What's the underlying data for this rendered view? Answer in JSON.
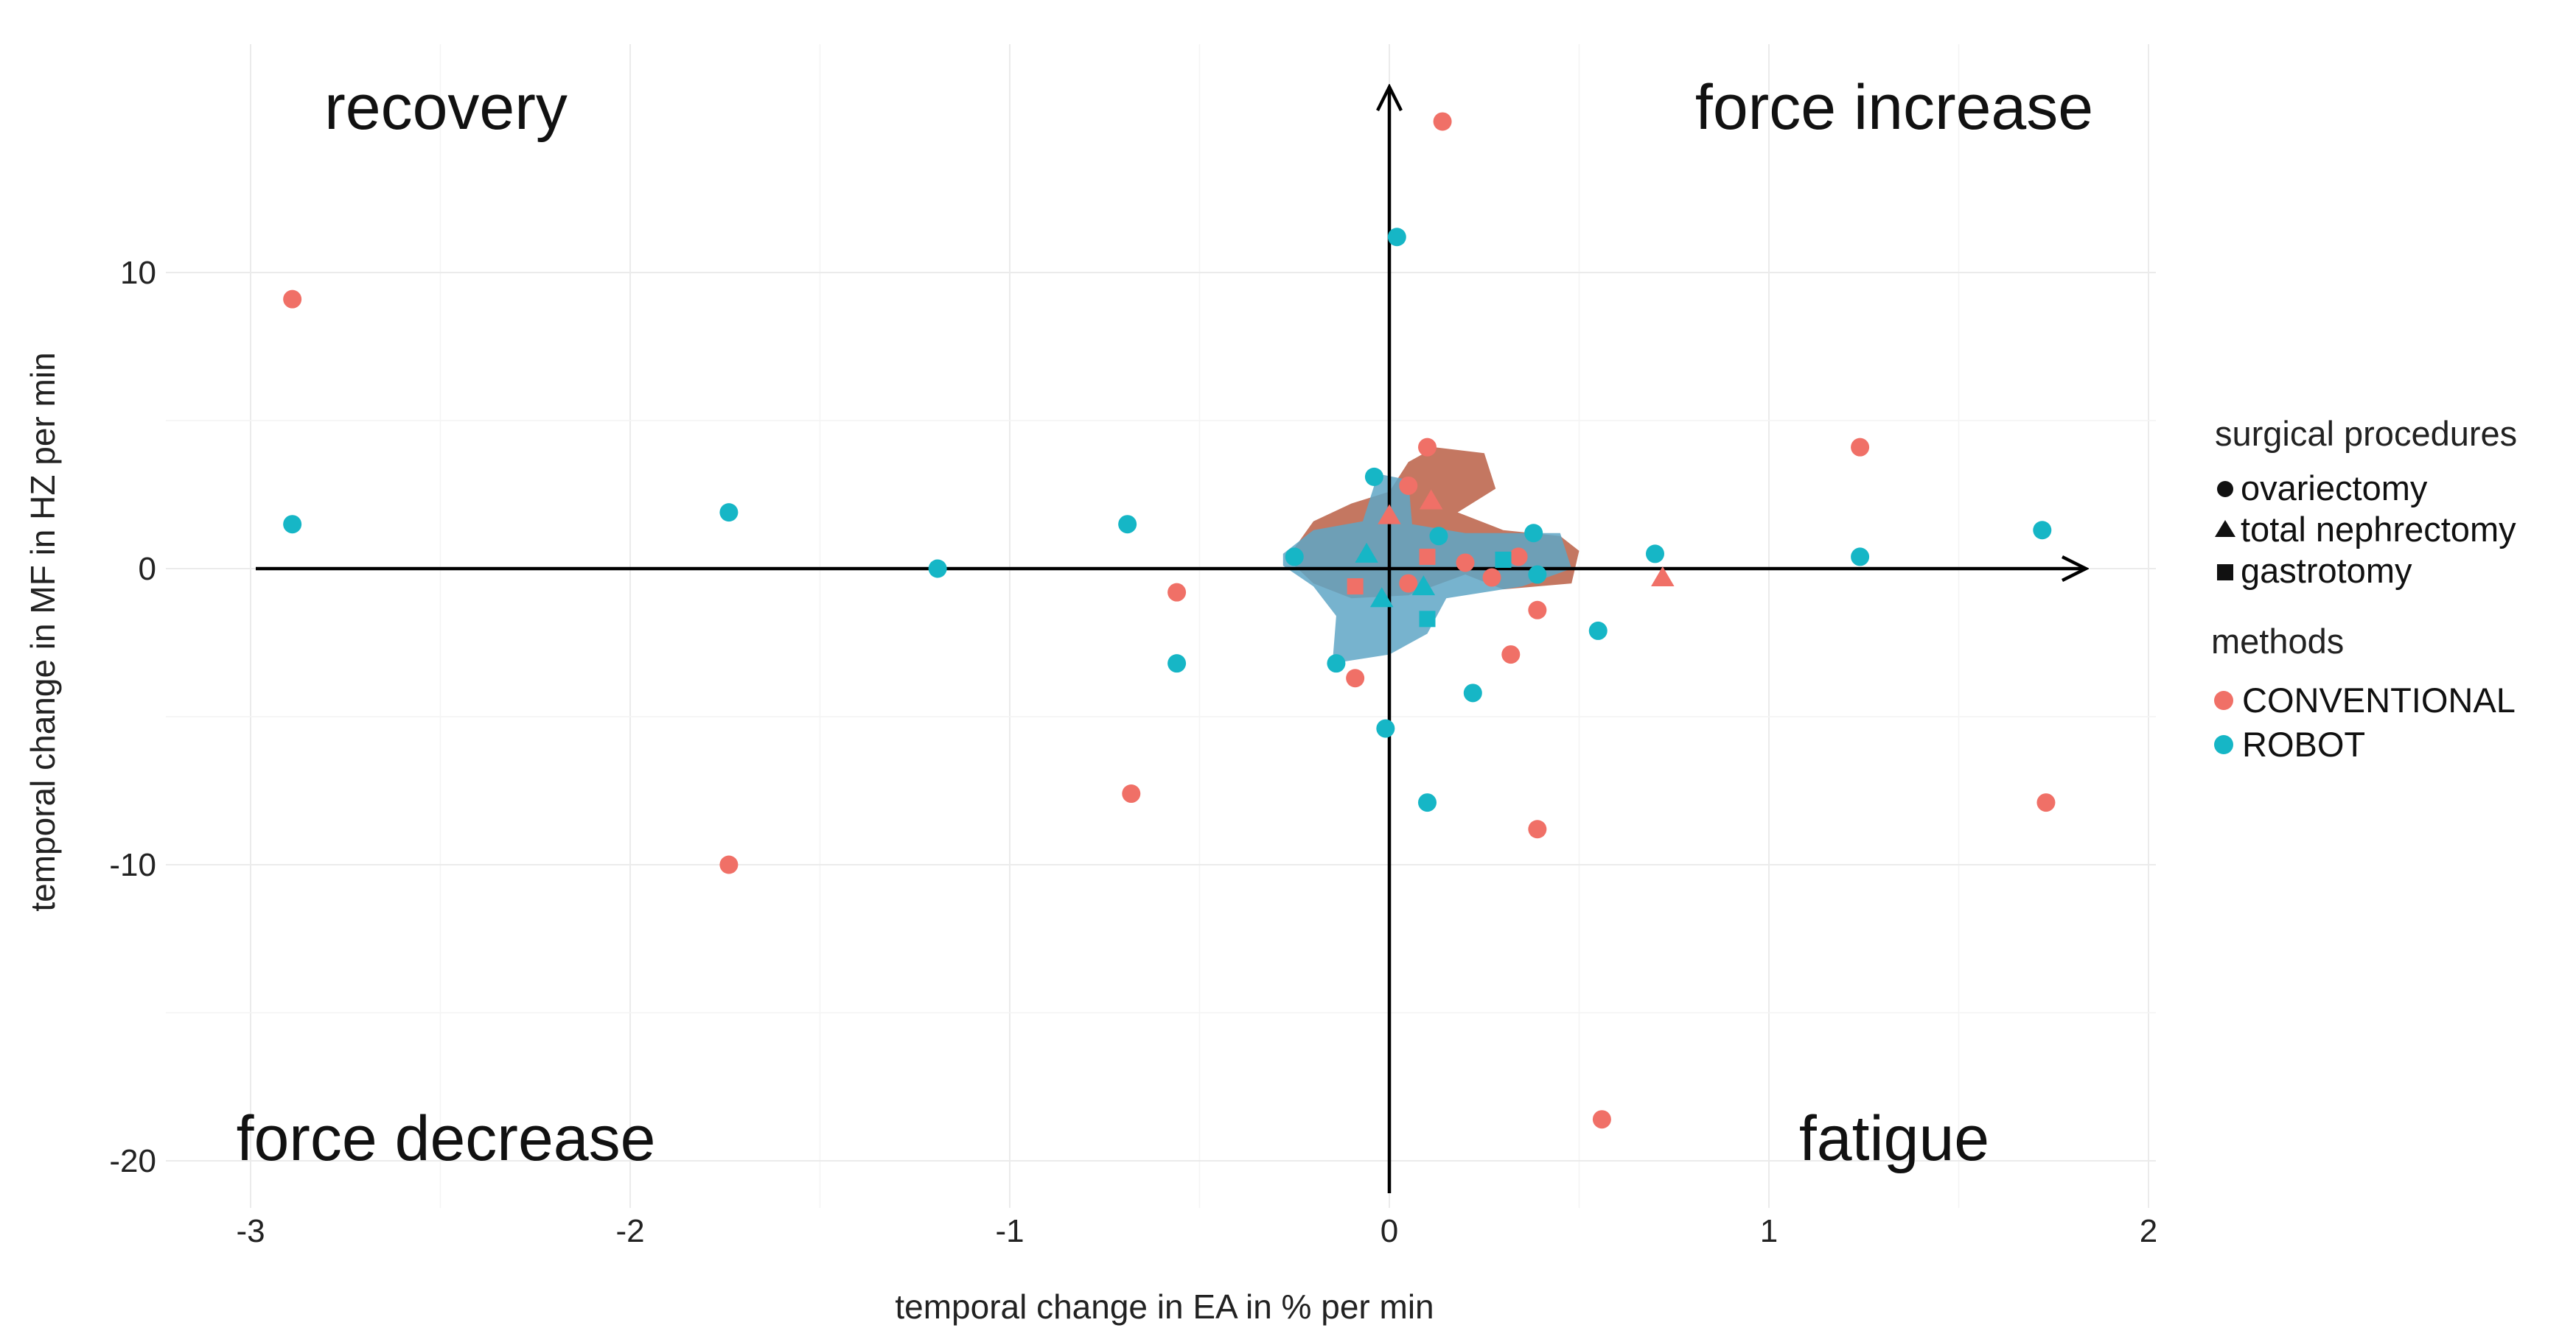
{
  "chart_data": {
    "type": "scatter",
    "title": "",
    "xlabel": "temporal change in EA in % per min",
    "ylabel": "temporal change in MF in HZ per min",
    "xlim": [
      -3.2,
      2.1
    ],
    "ylim": [
      -21,
      16.5
    ],
    "x_ticks": [
      {
        "value": -3,
        "label": "-3"
      },
      {
        "value": -2,
        "label": "-2"
      },
      {
        "value": -1,
        "label": "-1"
      },
      {
        "value": 0,
        "label": "0"
      },
      {
        "value": 1,
        "label": "1"
      },
      {
        "value": 2,
        "label": "2"
      }
    ],
    "y_ticks": [
      {
        "value": 10,
        "label": "10"
      },
      {
        "value": 0,
        "label": "0"
      },
      {
        "value": -10,
        "label": "-10"
      },
      {
        "value": -20,
        "label": "-20"
      }
    ],
    "grid": true,
    "quadrant_labels": {
      "top_left": "recovery",
      "top_right": "force increase",
      "bottom_left": "force decrease",
      "bottom_right": "fatigue"
    },
    "legend": {
      "position": "right",
      "shape_title": "surgical procedures",
      "shapes": [
        {
          "shape": "circle",
          "label": "ovariectomy"
        },
        {
          "shape": "triangle",
          "label": "total nephrectomy"
        },
        {
          "shape": "square",
          "label": "gastrotomy"
        }
      ],
      "color_title": "methods",
      "colors": [
        {
          "method": "CONVENTIONAL",
          "label": "CONVENTIONAL",
          "color": "#F07067"
        },
        {
          "method": "ROBOT",
          "label": "ROBOT",
          "color": "#16B6C6"
        }
      ]
    },
    "density_regions": [
      {
        "method": "CONVENTIONAL",
        "color": "#B5553A",
        "polygon": [
          [
            -0.25,
            0.7
          ],
          [
            -0.2,
            1.6
          ],
          [
            -0.1,
            2.2
          ],
          [
            0.0,
            2.6
          ],
          [
            0.05,
            3.6
          ],
          [
            0.12,
            4.1
          ],
          [
            0.25,
            3.9
          ],
          [
            0.28,
            2.7
          ],
          [
            0.18,
            1.9
          ],
          [
            0.3,
            1.3
          ],
          [
            0.45,
            1.1
          ],
          [
            0.5,
            0.6
          ],
          [
            0.48,
            -0.5
          ],
          [
            0.3,
            -0.7
          ],
          [
            0.2,
            -0.2
          ],
          [
            0.05,
            -0.9
          ],
          [
            -0.1,
            -1.0
          ],
          [
            -0.2,
            -0.5
          ],
          [
            -0.25,
            0.1
          ]
        ]
      },
      {
        "method": "ROBOT",
        "color": "#5FA6C6",
        "polygon": [
          [
            -0.28,
            0.5
          ],
          [
            -0.2,
            1.3
          ],
          [
            -0.07,
            1.6
          ],
          [
            -0.03,
            3.2
          ],
          [
            0.05,
            3.0
          ],
          [
            0.06,
            1.5
          ],
          [
            0.2,
            1.2
          ],
          [
            0.45,
            1.2
          ],
          [
            0.48,
            0.0
          ],
          [
            0.35,
            -0.6
          ],
          [
            0.15,
            -1.0
          ],
          [
            0.1,
            -2.2
          ],
          [
            0.0,
            -2.9
          ],
          [
            -0.15,
            -3.2
          ],
          [
            -0.14,
            -1.6
          ],
          [
            -0.2,
            -0.6
          ],
          [
            -0.28,
            0.1
          ]
        ]
      }
    ],
    "series": [
      {
        "name": "CONVENTIONAL",
        "color": "#F07067",
        "points": [
          {
            "x": 0.14,
            "y": 15.1,
            "shape": "circle"
          },
          {
            "x": -2.89,
            "y": 9.1,
            "shape": "circle"
          },
          {
            "x": 1.24,
            "y": 4.1,
            "shape": "circle"
          },
          {
            "x": 0.1,
            "y": 4.1,
            "shape": "circle"
          },
          {
            "x": 0.05,
            "y": 2.8,
            "shape": "circle"
          },
          {
            "x": 0.11,
            "y": 2.3,
            "shape": "triangle"
          },
          {
            "x": 0.0,
            "y": 1.8,
            "shape": "triangle"
          },
          {
            "x": 0.1,
            "y": 0.4,
            "shape": "square"
          },
          {
            "x": 0.2,
            "y": 0.2,
            "shape": "circle"
          },
          {
            "x": 0.27,
            "y": -0.3,
            "shape": "circle"
          },
          {
            "x": 0.34,
            "y": 0.4,
            "shape": "circle"
          },
          {
            "x": 0.72,
            "y": -0.3,
            "shape": "triangle"
          },
          {
            "x": 0.39,
            "y": -1.4,
            "shape": "circle"
          },
          {
            "x": 0.32,
            "y": -2.9,
            "shape": "circle"
          },
          {
            "x": -0.56,
            "y": -0.8,
            "shape": "circle"
          },
          {
            "x": -0.09,
            "y": -0.6,
            "shape": "square"
          },
          {
            "x": 0.05,
            "y": -0.5,
            "shape": "circle"
          },
          {
            "x": -0.09,
            "y": -3.7,
            "shape": "circle"
          },
          {
            "x": -0.68,
            "y": -7.6,
            "shape": "circle"
          },
          {
            "x": -1.74,
            "y": -10.0,
            "shape": "circle"
          },
          {
            "x": 0.39,
            "y": -8.8,
            "shape": "circle"
          },
          {
            "x": 1.73,
            "y": -7.9,
            "shape": "circle"
          },
          {
            "x": 0.56,
            "y": -18.6,
            "shape": "circle"
          }
        ]
      },
      {
        "name": "ROBOT",
        "color": "#16B6C6",
        "points": [
          {
            "x": 0.02,
            "y": 11.2,
            "shape": "circle"
          },
          {
            "x": -0.04,
            "y": 3.1,
            "shape": "circle"
          },
          {
            "x": -0.06,
            "y": 0.5,
            "shape": "triangle"
          },
          {
            "x": 0.13,
            "y": 1.1,
            "shape": "circle"
          },
          {
            "x": -2.89,
            "y": 1.5,
            "shape": "circle"
          },
          {
            "x": -1.74,
            "y": 1.9,
            "shape": "circle"
          },
          {
            "x": -0.69,
            "y": 1.5,
            "shape": "circle"
          },
          {
            "x": -1.19,
            "y": 0.0,
            "shape": "circle"
          },
          {
            "x": -0.25,
            "y": 0.4,
            "shape": "circle"
          },
          {
            "x": 0.38,
            "y": 1.2,
            "shape": "circle"
          },
          {
            "x": 0.39,
            "y": -0.2,
            "shape": "circle"
          },
          {
            "x": 0.7,
            "y": 0.5,
            "shape": "circle"
          },
          {
            "x": 1.24,
            "y": 0.4,
            "shape": "circle"
          },
          {
            "x": 1.72,
            "y": 1.3,
            "shape": "circle"
          },
          {
            "x": 0.3,
            "y": 0.3,
            "shape": "square"
          },
          {
            "x": 0.09,
            "y": -0.6,
            "shape": "triangle"
          },
          {
            "x": -0.02,
            "y": -1.0,
            "shape": "triangle"
          },
          {
            "x": 0.1,
            "y": -1.7,
            "shape": "square"
          },
          {
            "x": 0.55,
            "y": -2.1,
            "shape": "circle"
          },
          {
            "x": -0.14,
            "y": -3.2,
            "shape": "circle"
          },
          {
            "x": -0.56,
            "y": -3.2,
            "shape": "circle"
          },
          {
            "x": 0.22,
            "y": -4.2,
            "shape": "circle"
          },
          {
            "x": -0.01,
            "y": -5.4,
            "shape": "circle"
          },
          {
            "x": 0.1,
            "y": -7.9,
            "shape": "circle"
          }
        ]
      }
    ]
  }
}
